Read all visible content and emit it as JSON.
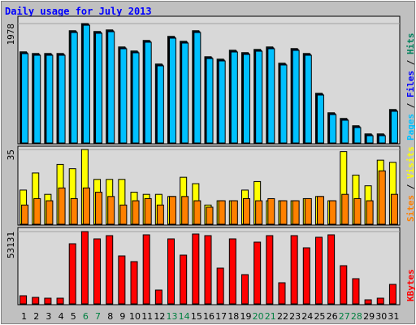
{
  "chart_data": [
    {
      "type": "bar",
      "title": "Daily usage for July 2013",
      "legend_separator": " / ",
      "ylim": [
        0,
        1978
      ],
      "yticks": [
        1978
      ],
      "series": [
        {
          "name": "Hits",
          "color": "#00805c",
          "values": [
            1510,
            1483,
            1483,
            1483,
            1860,
            1978,
            1847,
            1873,
            1591,
            1524,
            1699,
            1308,
            1766,
            1685,
            1860,
            1429,
            1389,
            1537,
            1497,
            1550,
            1591,
            1322,
            1564,
            1483,
            824,
            501,
            407,
            286,
            151,
            151,
            555
          ]
        },
        {
          "name": "Files",
          "color": "#0000ff",
          "values": [
            1495,
            1468,
            1468,
            1468,
            1845,
            1965,
            1832,
            1858,
            1576,
            1509,
            1684,
            1293,
            1751,
            1670,
            1845,
            1414,
            1374,
            1522,
            1482,
            1535,
            1576,
            1307,
            1549,
            1468,
            809,
            486,
            392,
            271,
            136,
            136,
            540
          ]
        },
        {
          "name": "Pages",
          "color": "#00c0ff",
          "values": [
            1480,
            1453,
            1453,
            1453,
            1830,
            1950,
            1817,
            1843,
            1561,
            1494,
            1669,
            1278,
            1736,
            1655,
            1830,
            1399,
            1359,
            1507,
            1467,
            1520,
            1561,
            1292,
            1534,
            1453,
            794,
            471,
            377,
            256,
            121,
            121,
            525
          ]
        }
      ]
    },
    {
      "type": "bar",
      "legend_separator": " / ",
      "ylim": [
        0,
        35
      ],
      "yticks": [
        35
      ],
      "series": [
        {
          "name": "Visits",
          "color": "#ffff00",
          "values": [
            16,
            24,
            14,
            28,
            26,
            35,
            21,
            21,
            21,
            15,
            14,
            14,
            13,
            22,
            19,
            9,
            11,
            11,
            16,
            20,
            11,
            11,
            11,
            12,
            13,
            11,
            34,
            23,
            18,
            30,
            29
          ]
        },
        {
          "name": "Sites",
          "color": "#ff8000",
          "values": [
            9,
            12,
            11,
            17,
            12,
            17,
            15,
            13,
            9,
            11,
            12,
            9,
            13,
            13,
            11,
            8,
            11,
            11,
            12,
            11,
            12,
            11,
            11,
            12,
            13,
            11,
            14,
            12,
            11,
            25,
            14
          ]
        }
      ]
    },
    {
      "type": "bar",
      "ylim": [
        0,
        53131
      ],
      "yticks": [
        53131
      ],
      "categories": [
        "1",
        "2",
        "3",
        "4",
        "5",
        "6",
        "7",
        "8",
        "9",
        "10",
        "11",
        "12",
        "13",
        "14",
        "15",
        "16",
        "17",
        "18",
        "19",
        "20",
        "21",
        "22",
        "23",
        "24",
        "25",
        "26",
        "27",
        "28",
        "29",
        "30",
        "31"
      ],
      "category_colors": [
        "#000000",
        "#000000",
        "#000000",
        "#000000",
        "#000000",
        "#008040",
        "#008040",
        "#000000",
        "#000000",
        "#000000",
        "#000000",
        "#000000",
        "#008040",
        "#008040",
        "#000000",
        "#000000",
        "#000000",
        "#000000",
        "#000000",
        "#008040",
        "#008040",
        "#000000",
        "#000000",
        "#000000",
        "#000000",
        "#000000",
        "#008040",
        "#008040",
        "#000000",
        "#000000",
        "#000000"
      ],
      "series": [
        {
          "name": "KBytes",
          "color": "#ff0000",
          "values": [
            5970,
            4776,
            4179,
            4179,
            44176,
            53131,
            47758,
            50146,
            35222,
            31043,
            50743,
            10149,
            47758,
            35819,
            51340,
            50146,
            26267,
            47758,
            21491,
            45370,
            50146,
            15521,
            50146,
            41191,
            48952,
            50743,
            28058,
            18506,
            2985,
            4179,
            14327
          ]
        }
      ]
    }
  ]
}
